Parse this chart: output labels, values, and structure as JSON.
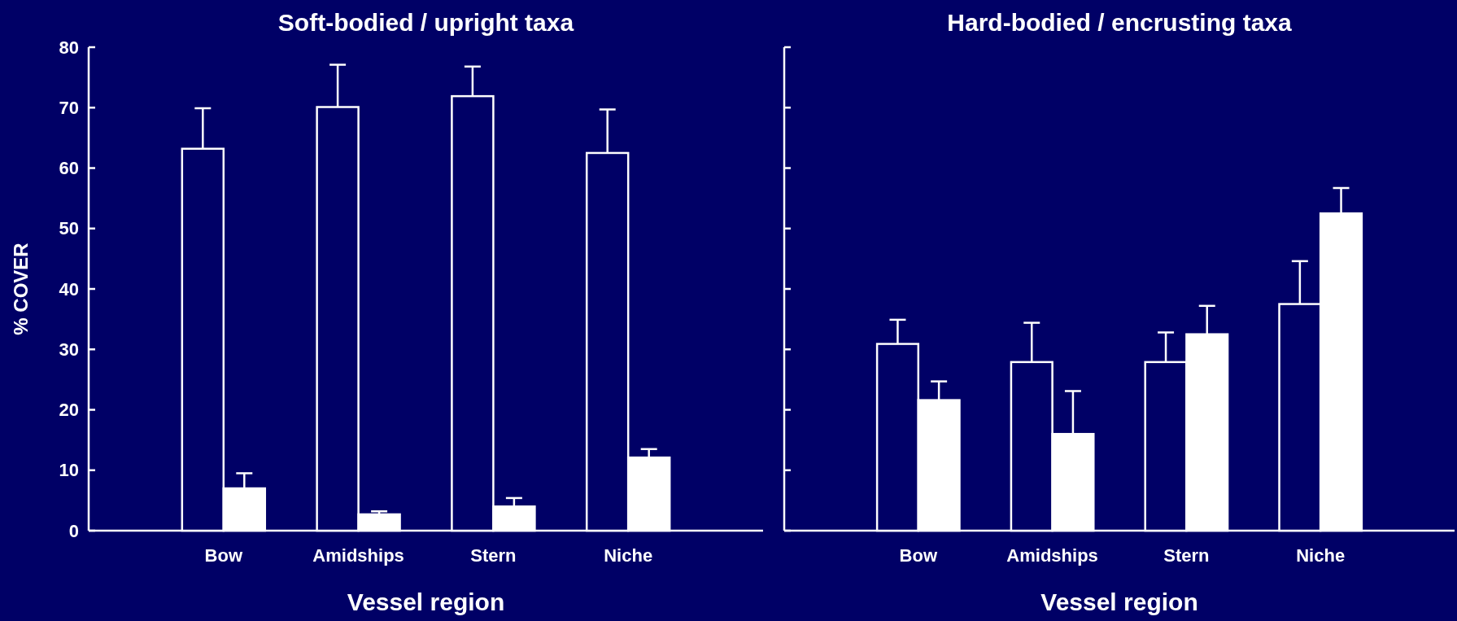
{
  "chart_data": [
    {
      "type": "bar",
      "title": "Soft-bodied / upright taxa",
      "xlabel": "Vessel region",
      "ylabel": "% COVER",
      "categories": [
        "Bow",
        "Amidships",
        "Stern",
        "Niche"
      ],
      "ylim": [
        0,
        80
      ],
      "yticks": [
        0,
        10,
        20,
        30,
        40,
        50,
        60,
        70,
        80
      ],
      "series": [
        {
          "color": "#000066",
          "values": [
            63.2,
            70.1,
            71.9,
            62.5
          ],
          "errors": [
            [
              63.2,
              69.9
            ],
            [
              70.1,
              77.1
            ],
            [
              71.9,
              76.8
            ],
            [
              62.5,
              69.7
            ]
          ]
        },
        {
          "color": "#ffffff",
          "values": [
            7.0,
            2.7,
            4.0,
            12.1
          ],
          "errors": [
            [
              7.0,
              9.5
            ],
            [
              2.7,
              3.2
            ],
            [
              4.0,
              5.4
            ],
            [
              12.1,
              13.5
            ]
          ]
        }
      ]
    },
    {
      "type": "bar",
      "title": "Hard-bodied / encrusting taxa",
      "xlabel": "Vessel region",
      "categories": [
        "Bow",
        "Amidships",
        "Stern",
        "Niche"
      ],
      "ylim": [
        0,
        80
      ],
      "yticks": [
        0,
        10,
        20,
        30,
        40,
        50,
        60,
        70,
        80
      ],
      "tick_labels": "x",
      "series": [
        {
          "color": "#000066",
          "values": [
            30.9,
            27.9,
            27.9,
            37.5
          ],
          "errors": [
            [
              30.9,
              34.9
            ],
            [
              27.9,
              34.4
            ],
            [
              27.9,
              32.8
            ],
            [
              37.5,
              44.6
            ]
          ]
        },
        {
          "color": "#ffffff",
          "values": [
            21.6,
            16.0,
            32.5,
            52.5
          ],
          "errors": [
            [
              21.6,
              24.7
            ],
            [
              16.0,
              23.1
            ],
            [
              32.5,
              37.2
            ],
            [
              52.5,
              56.7
            ]
          ]
        }
      ]
    }
  ]
}
